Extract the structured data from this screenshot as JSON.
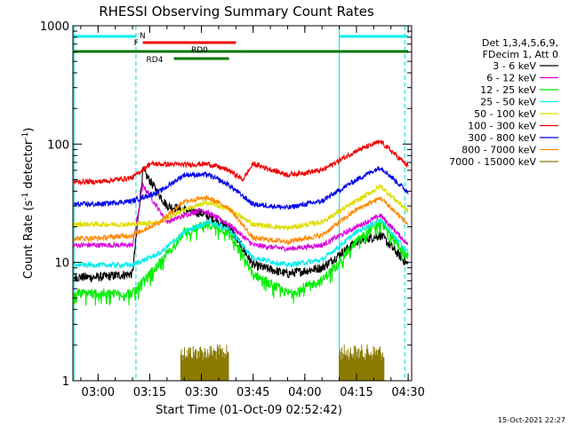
{
  "chart_data": {
    "type": "line",
    "title": "RHESSI Observing Summary Count Rates",
    "xlabel": "Start Time (01-Oct-09 02:52:42)",
    "ylabel_main": "Count Rate (s",
    "ylabel_sup1": "-1",
    "ylabel_mid": " detector",
    "ylabel_sup2": "-1",
    "ylabel_end": ")",
    "yscale": "log",
    "xlim": [
      "02:52:42",
      "04:31:00"
    ],
    "ylim": [
      1,
      1000
    ],
    "x_ticks": [
      "03:00",
      "03:15",
      "03:30",
      "03:45",
      "04:00",
      "04:15",
      "04:30"
    ],
    "y_ticks": [
      {
        "value": 1,
        "label": "1"
      },
      {
        "value": 10,
        "label": "10"
      },
      {
        "value": 100,
        "label": "100"
      },
      {
        "value": 1000,
        "label": "1000"
      }
    ],
    "legend_header": [
      "Det 1,3,4,5,6,9,",
      "FDecim 1, Att 0"
    ],
    "legend_position": "right",
    "series": [
      {
        "name": "3 - 6 keV",
        "color": "#000000",
        "x": [
          "02:53",
          "03:00",
          "03:10",
          "03:13",
          "03:20",
          "03:30",
          "03:38",
          "03:45",
          "03:55",
          "04:05",
          "04:15",
          "04:22",
          "04:30"
        ],
        "y": [
          7.5,
          7.5,
          8.0,
          60,
          30,
          26,
          20,
          9.5,
          8.0,
          9.0,
          15,
          17,
          9.5
        ]
      },
      {
        "name": "6 - 12 keV",
        "color": "#dd00dd",
        "x": [
          "02:53",
          "03:00",
          "03:10",
          "03:13",
          "03:20",
          "03:30",
          "03:38",
          "03:45",
          "03:55",
          "04:05",
          "04:15",
          "04:22",
          "04:30"
        ],
        "y": [
          14,
          14,
          14,
          45,
          22,
          28,
          21,
          14,
          13,
          14,
          20,
          25,
          14
        ]
      },
      {
        "name": "12 - 25 keV",
        "color": "#00ee00",
        "x": [
          "02:53",
          "03:00",
          "03:10",
          "03:18",
          "03:25",
          "03:32",
          "03:38",
          "03:45",
          "03:55",
          "04:05",
          "04:15",
          "04:22",
          "04:30"
        ],
        "y": [
          5.5,
          5.5,
          5.5,
          10,
          18,
          21,
          18,
          8.0,
          5.5,
          7.0,
          15,
          22,
          11
        ]
      },
      {
        "name": "25 - 50 keV",
        "color": "#00eeee",
        "x": [
          "02:53",
          "03:00",
          "03:10",
          "03:18",
          "03:25",
          "03:32",
          "03:38",
          "03:45",
          "03:55",
          "04:05",
          "04:15",
          "04:22",
          "04:30"
        ],
        "y": [
          9.5,
          9.5,
          9.5,
          12,
          18,
          22,
          19,
          11,
          9.5,
          10.5,
          18,
          23,
          12
        ]
      },
      {
        "name": "50 - 100 keV",
        "color": "#dddd00",
        "x": [
          "02:53",
          "03:00",
          "03:10",
          "03:18",
          "03:25",
          "03:32",
          "03:38",
          "03:45",
          "03:55",
          "04:05",
          "04:15",
          "04:22",
          "04:30"
        ],
        "y": [
          21,
          21,
          21,
          22,
          28,
          32,
          28,
          21,
          19.5,
          22,
          33,
          44,
          27
        ]
      },
      {
        "name": "100 - 300 keV",
        "color": "#ee0000",
        "x": [
          "02:53",
          "03:00",
          "03:10",
          "03:15",
          "03:25",
          "03:32",
          "03:38",
          "03:42",
          "03:45",
          "03:55",
          "04:05",
          "04:15",
          "04:22",
          "04:30"
        ],
        "y": [
          48,
          48,
          52,
          68,
          67,
          68,
          60,
          50,
          68,
          55,
          60,
          88,
          105,
          65
        ]
      },
      {
        "name": "300 - 800 keV",
        "color": "#0000ee",
        "x": [
          "02:53",
          "03:00",
          "03:10",
          "03:18",
          "03:25",
          "03:32",
          "03:38",
          "03:45",
          "03:55",
          "04:05",
          "04:15",
          "04:22",
          "04:30"
        ],
        "y": [
          31,
          31,
          33,
          40,
          55,
          55,
          45,
          31,
          29,
          33,
          50,
          64,
          39
        ]
      },
      {
        "name": "800 - 7000 keV",
        "color": "#ff8800",
        "x": [
          "02:53",
          "03:00",
          "03:10",
          "03:18",
          "03:25",
          "03:32",
          "03:38",
          "03:45",
          "03:55",
          "04:05",
          "04:15",
          "04:22",
          "04:30"
        ],
        "y": [
          16,
          16,
          17,
          22,
          33,
          35,
          29,
          16,
          15,
          17,
          28,
          35,
          21
        ]
      },
      {
        "name": "7000 - 15000 keV",
        "color": "#8b7a00",
        "x": [],
        "y": []
      }
    ],
    "flags": {
      "n_label": "N",
      "f_label": "F",
      "rd0_label": "RD0",
      "rd4_label": "RD4",
      "n_intervals": [
        [
          "02:53",
          "03:11"
        ],
        [
          "04:10",
          "04:30"
        ]
      ],
      "f_intervals": [
        [
          "03:13",
          "03:40"
        ]
      ],
      "rd0_intervals": [
        [
          "02:53",
          "03:42"
        ],
        [
          "03:42",
          "04:30"
        ]
      ],
      "rd4_intervals": [
        [
          "03:22",
          "03:38"
        ]
      ]
    },
    "saa_line_times": [
      "02:53",
      "03:11",
      "04:10",
      "04:29"
    ],
    "spiky_bursts": [
      [
        "03:24",
        "03:38"
      ],
      [
        "04:10",
        "04:23"
      ]
    ],
    "timestamp": "15-Oct-2021 22:27"
  }
}
